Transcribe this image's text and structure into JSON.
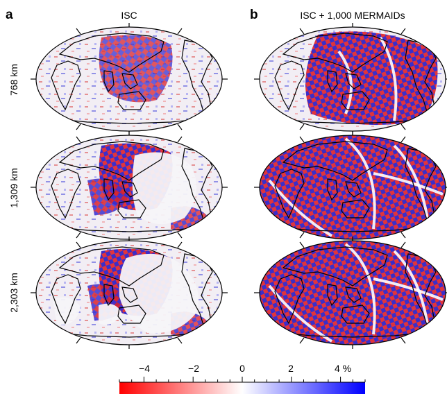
{
  "panels": [
    {
      "letter": "a",
      "title": "ISC"
    },
    {
      "letter": "b",
      "title": "ISC + 1,000 MERMAIDs"
    }
  ],
  "depths": [
    "768 km",
    "1,309 km",
    "2,303 km"
  ],
  "colorbar": {
    "tick_labels": [
      "−4",
      "−2",
      "0",
      "2",
      "4 %"
    ],
    "colors": {
      "negative": "#ff0000",
      "zero": "#ffffff",
      "positive": "#0000ff"
    }
  }
}
